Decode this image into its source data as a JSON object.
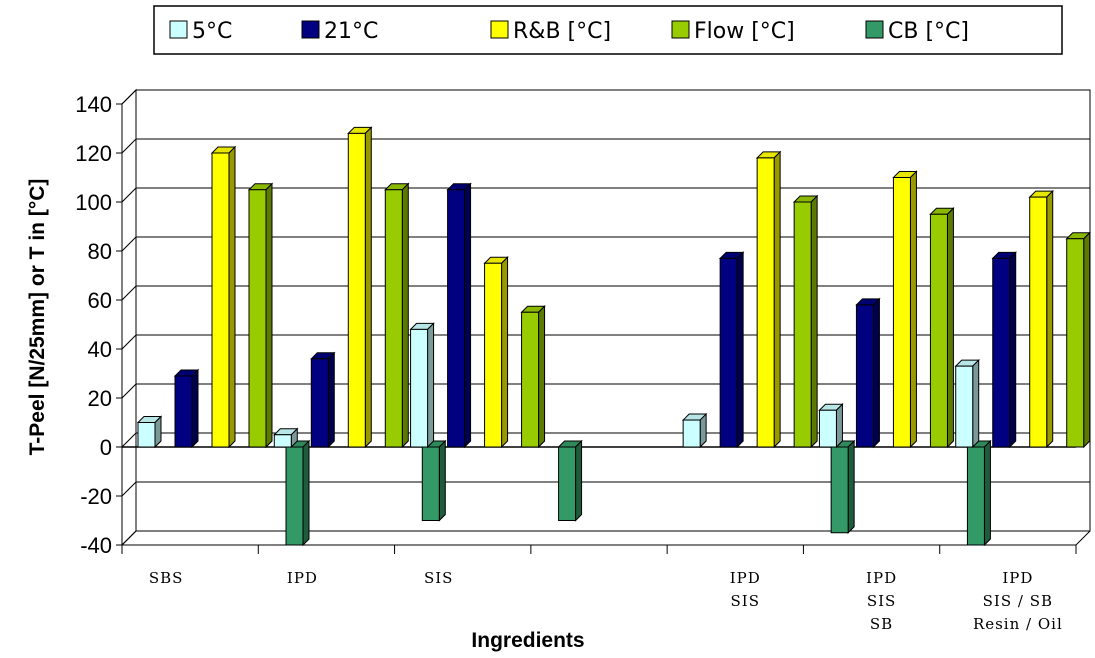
{
  "chart_data": {
    "type": "bar",
    "xlabel": "Ingredients",
    "ylabel": "T-Peel [N/25mm] or T in [°C]",
    "ylim": [
      -40,
      140
    ],
    "yticks": [
      -40,
      -20,
      0,
      20,
      40,
      60,
      80,
      100,
      120,
      140
    ],
    "ytick_labels": [
      "-40",
      "-20",
      "0",
      "20",
      "40",
      "60",
      "80",
      "100",
      "120",
      "140"
    ],
    "grid": true,
    "legend_position": "top",
    "categories": [
      [
        "SBS"
      ],
      [
        "IPD"
      ],
      [
        "SIS"
      ],
      [],
      [
        "IPD",
        "SIS"
      ],
      [
        "IPD",
        "SIS",
        "SB"
      ],
      [
        "IPD",
        "SIS / SB",
        "Resin / Oil"
      ]
    ],
    "series": [
      {
        "name": "5°C",
        "color": "#ccffff",
        "values": [
          10,
          5,
          48,
          null,
          11,
          15,
          33
        ]
      },
      {
        "name": "21°C",
        "color": "#000080",
        "values": [
          29,
          36,
          105,
          null,
          77,
          58,
          77
        ]
      },
      {
        "name": "R&B [°C]",
        "color": "#ffff00",
        "values": [
          120,
          128,
          75,
          null,
          118,
          110,
          102
        ]
      },
      {
        "name": "Flow [°C]",
        "color": "#99cc00",
        "values": [
          105,
          105,
          55,
          null,
          100,
          95,
          85
        ]
      },
      {
        "name": "CB [°C]",
        "color": "#339966",
        "values": [
          -40,
          -30,
          -30,
          null,
          -35,
          -40,
          -30
        ]
      }
    ]
  }
}
